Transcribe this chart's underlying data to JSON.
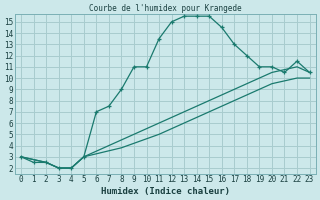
{
  "title": "Courbe de l'humidex pour Krangede",
  "xlabel": "Humidex (Indice chaleur)",
  "bg_color": "#cce8ea",
  "grid_color": "#a8ccce",
  "line_color": "#1a7a6e",
  "xlim": [
    -0.5,
    23.5
  ],
  "ylim": [
    1.5,
    15.7
  ],
  "xticks": [
    0,
    1,
    2,
    3,
    4,
    5,
    6,
    7,
    8,
    9,
    10,
    11,
    12,
    13,
    14,
    15,
    16,
    17,
    18,
    19,
    20,
    21,
    22,
    23
  ],
  "yticks": [
    2,
    3,
    4,
    5,
    6,
    7,
    8,
    9,
    10,
    11,
    12,
    13,
    14,
    15
  ],
  "line1_x": [
    0,
    1,
    2,
    3,
    4,
    5,
    6,
    7,
    8,
    9,
    10,
    11,
    12,
    13,
    14,
    15,
    16,
    17,
    18,
    19,
    20,
    21,
    22,
    23
  ],
  "line1_y": [
    3,
    2.5,
    2.5,
    2,
    2,
    3,
    7,
    7.5,
    9,
    11,
    11,
    13.5,
    15,
    15.5,
    15.5,
    15.5,
    14.5,
    13,
    12,
    11,
    11,
    10.5,
    11.5,
    10.5
  ],
  "line2_x": [
    0,
    2,
    3,
    4,
    5,
    8,
    11,
    14,
    17,
    20,
    22,
    23
  ],
  "line2_y": [
    3,
    2.5,
    2,
    2,
    3,
    4.5,
    6,
    7.5,
    9,
    10.5,
    11,
    10.5
  ],
  "line3_x": [
    0,
    2,
    3,
    4,
    5,
    8,
    11,
    14,
    17,
    20,
    22,
    23
  ],
  "line3_y": [
    3,
    2.5,
    2,
    2,
    3,
    3.8,
    5,
    6.5,
    8,
    9.5,
    10,
    10
  ]
}
